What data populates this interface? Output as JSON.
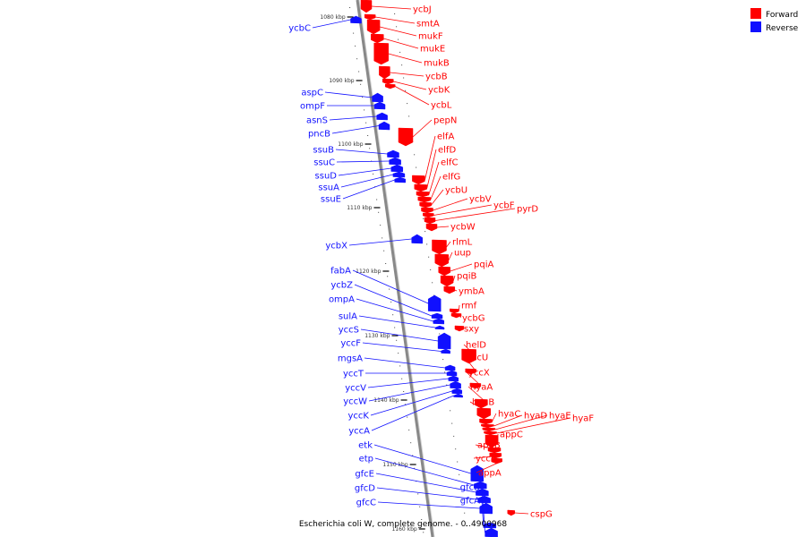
{
  "colors": {
    "forward": "#ff0000",
    "reverse": "#1010ff",
    "axis": "#888888",
    "tick": "#000000"
  },
  "legend": {
    "forward_label": "Forward",
    "reverse_label": "Reverse"
  },
  "caption": "Escherichia coli W, complete genome. - 0..4900968",
  "ticks": [
    "1080 kbp",
    "1090 kbp",
    "1100 kbp",
    "1110 kbp",
    "1120 kbp",
    "1130 kbp",
    "1140 kbp",
    "1150 kbp",
    "1160 kbp"
  ],
  "genes": [
    {
      "name": "ycbJ",
      "strand": "forward"
    },
    {
      "name": "smtA",
      "strand": "forward"
    },
    {
      "name": "mukF",
      "strand": "forward"
    },
    {
      "name": "mukE",
      "strand": "forward"
    },
    {
      "name": "mukB",
      "strand": "forward"
    },
    {
      "name": "ycbB",
      "strand": "forward"
    },
    {
      "name": "ycbK",
      "strand": "forward"
    },
    {
      "name": "ycbL",
      "strand": "forward"
    },
    {
      "name": "pepN",
      "strand": "forward"
    },
    {
      "name": "elfA",
      "strand": "forward"
    },
    {
      "name": "elfD",
      "strand": "forward"
    },
    {
      "name": "elfC",
      "strand": "forward"
    },
    {
      "name": "elfG",
      "strand": "forward"
    },
    {
      "name": "ycbU",
      "strand": "forward"
    },
    {
      "name": "ycbV",
      "strand": "forward"
    },
    {
      "name": "ycbF",
      "strand": "forward"
    },
    {
      "name": "pyrD",
      "strand": "forward"
    },
    {
      "name": "ycbW",
      "strand": "forward"
    },
    {
      "name": "rlmL",
      "strand": "forward"
    },
    {
      "name": "uup",
      "strand": "forward"
    },
    {
      "name": "pqiA",
      "strand": "forward"
    },
    {
      "name": "pqiB",
      "strand": "forward"
    },
    {
      "name": "ymbA",
      "strand": "forward"
    },
    {
      "name": "rmf",
      "strand": "forward"
    },
    {
      "name": "ycbG",
      "strand": "forward"
    },
    {
      "name": "sxy",
      "strand": "forward"
    },
    {
      "name": "helD",
      "strand": "forward"
    },
    {
      "name": "yccU",
      "strand": "forward"
    },
    {
      "name": "yccX",
      "strand": "forward"
    },
    {
      "name": "hyaA",
      "strand": "forward"
    },
    {
      "name": "hyaB",
      "strand": "forward"
    },
    {
      "name": "hyaC",
      "strand": "forward"
    },
    {
      "name": "hyaD",
      "strand": "forward"
    },
    {
      "name": "hyaE",
      "strand": "forward"
    },
    {
      "name": "hyaF",
      "strand": "forward"
    },
    {
      "name": "appC",
      "strand": "forward"
    },
    {
      "name": "appB",
      "strand": "forward"
    },
    {
      "name": "yccB",
      "strand": "forward"
    },
    {
      "name": "appA",
      "strand": "forward"
    },
    {
      "name": "cspG",
      "strand": "forward"
    },
    {
      "name": "ycbC",
      "strand": "reverse"
    },
    {
      "name": "aspC",
      "strand": "reverse"
    },
    {
      "name": "ompF",
      "strand": "reverse"
    },
    {
      "name": "asnS",
      "strand": "reverse"
    },
    {
      "name": "pncB",
      "strand": "reverse"
    },
    {
      "name": "ssuB",
      "strand": "reverse"
    },
    {
      "name": "ssuC",
      "strand": "reverse"
    },
    {
      "name": "ssuD",
      "strand": "reverse"
    },
    {
      "name": "ssuA",
      "strand": "reverse"
    },
    {
      "name": "ssuE",
      "strand": "reverse"
    },
    {
      "name": "ycbX",
      "strand": "reverse"
    },
    {
      "name": "fabA",
      "strand": "reverse"
    },
    {
      "name": "ycbZ",
      "strand": "reverse"
    },
    {
      "name": "ompA",
      "strand": "reverse"
    },
    {
      "name": "sulA",
      "strand": "reverse"
    },
    {
      "name": "yccS",
      "strand": "reverse"
    },
    {
      "name": "yccF",
      "strand": "reverse"
    },
    {
      "name": "mgsA",
      "strand": "reverse"
    },
    {
      "name": "yccT",
      "strand": "reverse"
    },
    {
      "name": "yccV",
      "strand": "reverse"
    },
    {
      "name": "yccW",
      "strand": "reverse"
    },
    {
      "name": "yccK",
      "strand": "reverse"
    },
    {
      "name": "yccA",
      "strand": "reverse"
    },
    {
      "name": "etk",
      "strand": "reverse"
    },
    {
      "name": "etp",
      "strand": "reverse"
    },
    {
      "name": "gfcE",
      "strand": "reverse"
    },
    {
      "name": "gfcD",
      "strand": "reverse"
    },
    {
      "name": "gfcC",
      "strand": "reverse"
    },
    {
      "name": "gfcB",
      "strand": "reverse"
    },
    {
      "name": "gfcA",
      "strand": "reverse"
    }
  ]
}
